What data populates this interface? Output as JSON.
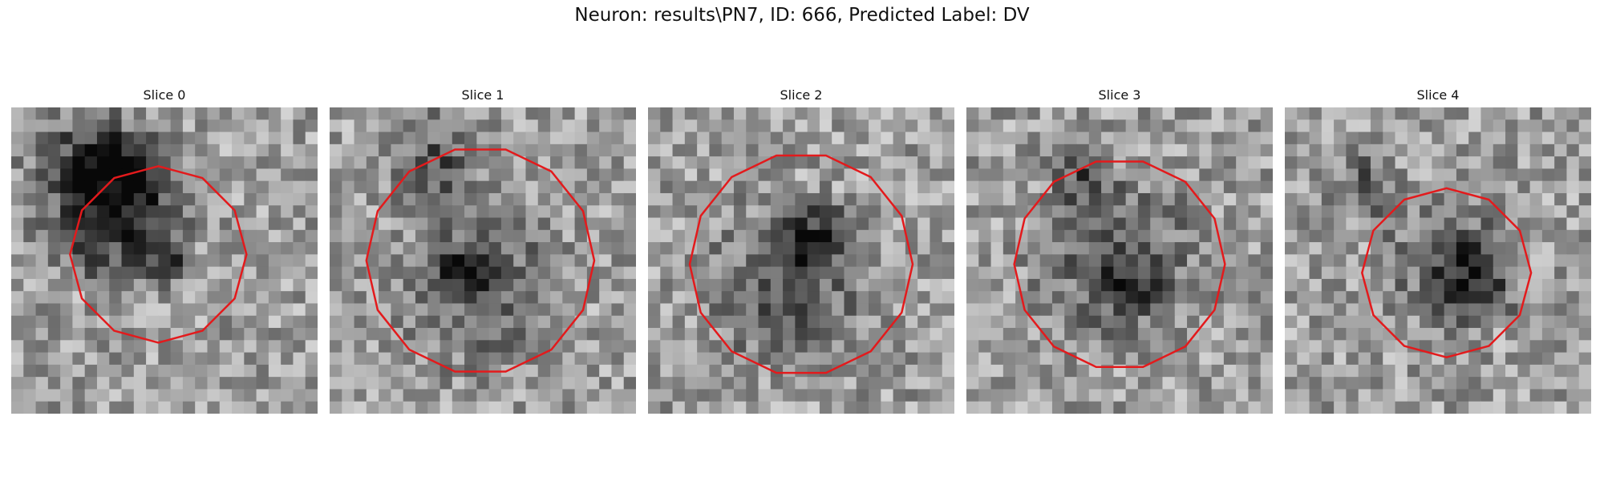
{
  "figure": {
    "title": "Neuron: results\\PN7, ID: 666, Predicted Label: DV"
  },
  "panels": [
    {
      "title": "Slice 0",
      "image": "grayscale microscopy patch with red contour outline",
      "contour_color": "#e31a1c"
    },
    {
      "title": "Slice 1",
      "image": "grayscale microscopy patch with red contour outline",
      "contour_color": "#e31a1c"
    },
    {
      "title": "Slice 2",
      "image": "grayscale microscopy patch with red contour outline",
      "contour_color": "#e31a1c"
    },
    {
      "title": "Slice 3",
      "image": "grayscale microscopy patch with red contour outline",
      "contour_color": "#e31a1c"
    },
    {
      "title": "Slice 4",
      "image": "grayscale microscopy patch with red contour outline",
      "contour_color": "#e31a1c"
    }
  ]
}
